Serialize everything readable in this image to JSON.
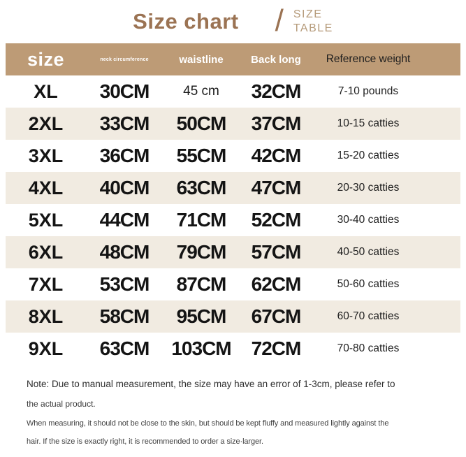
{
  "page": {
    "title": "Size chart",
    "slash": "/",
    "subtitle_line1": "SIZE",
    "subtitle_line2": "TABLE"
  },
  "colors": {
    "title_brown": "#9b7353",
    "subtitle_brown": "#b59a79",
    "header_bg": "#bd9b76",
    "header_text": "#ffffff",
    "row_alt_bg": "#f1ebe1",
    "body_text": "#141414",
    "note_text": "#3c3c3c"
  },
  "table": {
    "headers": {
      "size": "size",
      "neck": "neck circumference",
      "waist": "waistline",
      "back": "Back long",
      "weight": "Reference weight"
    },
    "rows": [
      {
        "size": "XL",
        "neck": "30CM",
        "waist": "45 cm",
        "back": "32CM",
        "weight": "7-10 pounds"
      },
      {
        "size": "2XL",
        "neck": "33CM",
        "waist": "50CM",
        "back": "37CM",
        "weight": "10-15 catties"
      },
      {
        "size": "3XL",
        "neck": "36CM",
        "waist": "55CM",
        "back": "42CM",
        "weight": "15-20 catties"
      },
      {
        "size": "4XL",
        "neck": "40CM",
        "waist": "63CM",
        "back": "47CM",
        "weight": "20-30 catties"
      },
      {
        "size": "5XL",
        "neck": "44CM",
        "waist": "71CM",
        "back": "52CM",
        "weight": "30-40 catties"
      },
      {
        "size": "6XL",
        "neck": "48CM",
        "waist": "79CM",
        "back": "57CM",
        "weight": "40-50 catties"
      },
      {
        "size": "7XL",
        "neck": "53CM",
        "waist": "87CM",
        "back": "62CM",
        "weight": "50-60 catties"
      },
      {
        "size": "8XL",
        "neck": "58CM",
        "waist": "95CM",
        "back": "67CM",
        "weight": "60-70 catties"
      },
      {
        "size": "9XL",
        "neck": "63CM",
        "waist": "103CM",
        "back": "72CM",
        "weight": "70-80 catties"
      }
    ]
  },
  "notes": {
    "line1": "Note: Due to manual measurement, the size may have an error of 1-3cm, please refer to",
    "line2": "the actual product.",
    "line3": "When measuring, it should not be close to the skin, but should be kept fluffy and measured lightly against the",
    "line4": "hair. If the size is exactly right, it is recommended to order a size·larger."
  },
  "chart_data": {
    "type": "table",
    "title": "Size chart",
    "columns": [
      "size",
      "neck circumference",
      "waistline",
      "Back long",
      "Reference weight"
    ],
    "rows": [
      [
        "XL",
        "30CM",
        "45 cm",
        "32CM",
        "7-10 pounds"
      ],
      [
        "2XL",
        "33CM",
        "50CM",
        "37CM",
        "10-15 catties"
      ],
      [
        "3XL",
        "36CM",
        "55CM",
        "42CM",
        "15-20 catties"
      ],
      [
        "4XL",
        "40CM",
        "63CM",
        "47CM",
        "20-30 catties"
      ],
      [
        "5XL",
        "44CM",
        "71CM",
        "52CM",
        "30-40 catties"
      ],
      [
        "6XL",
        "48CM",
        "79CM",
        "57CM",
        "40-50 catties"
      ],
      [
        "7XL",
        "53CM",
        "87CM",
        "62CM",
        "50-60 catties"
      ],
      [
        "8XL",
        "58CM",
        "95CM",
        "67CM",
        "60-70 catties"
      ],
      [
        "9XL",
        "63CM",
        "103CM",
        "72CM",
        "70-80 catties"
      ]
    ],
    "layout": {
      "alternating_row_shading": true,
      "header_background": "#bd9b76"
    }
  }
}
